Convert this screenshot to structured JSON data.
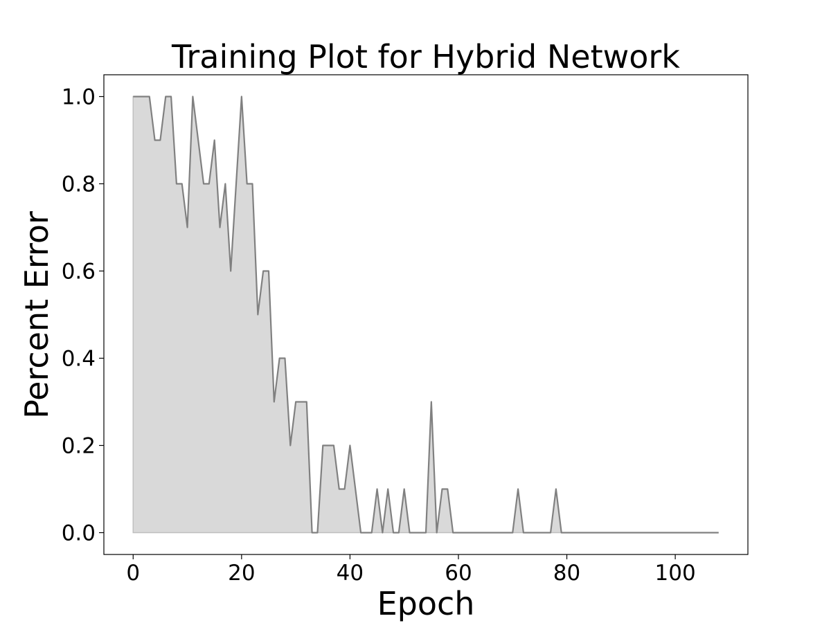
{
  "chart_data": {
    "type": "area",
    "title": "Training Plot for Hybrid Network",
    "xlabel": "Epoch",
    "ylabel": "Percent Error",
    "xlim": [
      -5.4,
      113.4
    ],
    "ylim": [
      -0.05,
      1.05
    ],
    "xticks": [
      0,
      20,
      40,
      60,
      80,
      100
    ],
    "yticks": [
      0.0,
      0.2,
      0.4,
      0.6,
      0.8,
      1.0
    ],
    "xtick_labels": [
      "0",
      "20",
      "40",
      "60",
      "80",
      "100"
    ],
    "ytick_labels": [
      "0.0",
      "0.2",
      "0.4",
      "0.6",
      "0.8",
      "1.0"
    ],
    "grid": false,
    "legend": false,
    "colors": {
      "line": "#808080",
      "fill": "#d9d9d9",
      "fill_edge": "#c0c0c0"
    },
    "series": [
      {
        "x": [
          0,
          1,
          2,
          3,
          4,
          5,
          6,
          7,
          8,
          9,
          10,
          11,
          12,
          13,
          14,
          15,
          16,
          17,
          18,
          19,
          20,
          21,
          22,
          23,
          24,
          25,
          26,
          27,
          28,
          29,
          30,
          31,
          32,
          33,
          34,
          35,
          36,
          37,
          38,
          39,
          40,
          41,
          42,
          43,
          44,
          45,
          46,
          47,
          48,
          49,
          50,
          51,
          52,
          53,
          54,
          55,
          56,
          57,
          58,
          59,
          60,
          61,
          62,
          63,
          64,
          65,
          66,
          67,
          68,
          69,
          70,
          71,
          72,
          73,
          74,
          75,
          76,
          77,
          78,
          79,
          80,
          81,
          82,
          83,
          84,
          85,
          86,
          87,
          88,
          89,
          90,
          91,
          92,
          93,
          94,
          95,
          96,
          97,
          98,
          99,
          100,
          101,
          102,
          103,
          104,
          105,
          106,
          107,
          108
        ],
        "values": [
          1.0,
          1.0,
          1.0,
          1.0,
          0.9,
          0.9,
          1.0,
          1.0,
          0.8,
          0.8,
          0.7,
          1.0,
          0.9,
          0.8,
          0.8,
          0.9,
          0.7,
          0.8,
          0.6,
          0.8,
          1.0,
          0.8,
          0.8,
          0.5,
          0.6,
          0.6,
          0.3,
          0.4,
          0.4,
          0.2,
          0.3,
          0.3,
          0.3,
          0.0,
          0.0,
          0.2,
          0.2,
          0.2,
          0.1,
          0.1,
          0.2,
          0.1,
          0.0,
          0.0,
          0.0,
          0.1,
          0.0,
          0.1,
          0.0,
          0.0,
          0.1,
          0.0,
          0.0,
          0.0,
          0.0,
          0.3,
          0.0,
          0.1,
          0.1,
          0.0,
          0.0,
          0.0,
          0.0,
          0.0,
          0.0,
          0.0,
          0.0,
          0.0,
          0.0,
          0.0,
          0.0,
          0.1,
          0.0,
          0.0,
          0.0,
          0.0,
          0.0,
          0.0,
          0.1,
          0.0,
          0.0,
          0.0,
          0.0,
          0.0,
          0.0,
          0.0,
          0.0,
          0.0,
          0.0,
          0.0,
          0.0,
          0.0,
          0.0,
          0.0,
          0.0,
          0.0,
          0.0,
          0.0,
          0.0,
          0.0,
          0.0,
          0.0,
          0.0,
          0.0,
          0.0,
          0.0,
          0.0,
          0.0,
          0.0
        ]
      }
    ]
  }
}
